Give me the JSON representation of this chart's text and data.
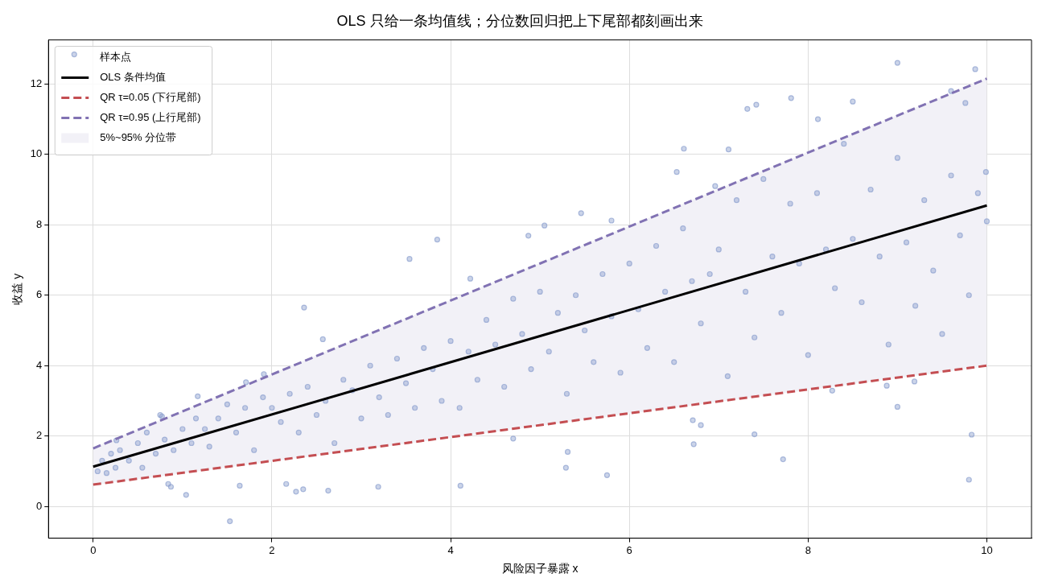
{
  "chart_data": {
    "type": "scatter",
    "title": "OLS 只给一条均值线；分位数回归把上下尾部都刻画出来",
    "xlabel": "风险因子暴露 x",
    "ylabel": "收益 y",
    "xlim": [
      -0.5,
      10.5
    ],
    "xticks": [
      0,
      2,
      4,
      6,
      8,
      10
    ],
    "ylim": [
      -0.9,
      13.25
    ],
    "yticks": [
      0,
      2,
      4,
      6,
      8,
      10,
      12
    ],
    "grid": true,
    "legend": "top left",
    "series": [
      {
        "name": "样本点",
        "color": "#8c9fcf",
        "marker": "circle",
        "x": [
          0.05,
          0.1,
          0.15,
          0.2,
          0.25,
          0.3,
          0.4,
          0.5,
          0.55,
          0.6,
          0.7,
          0.75,
          0.8,
          0.9,
          1.0,
          1.1,
          1.15,
          1.25,
          1.3,
          1.4,
          1.5,
          1.6,
          1.7,
          1.8,
          1.9,
          2.0,
          2.1,
          2.2,
          2.3,
          2.4,
          2.5,
          2.6,
          2.7,
          2.8,
          2.9,
          3.0,
          3.1,
          3.2,
          3.3,
          3.4,
          3.5,
          3.6,
          3.7,
          3.8,
          3.9,
          4.0,
          4.1,
          4.2,
          4.3,
          4.4,
          4.5,
          4.6,
          4.7,
          4.8,
          4.9,
          5.0,
          5.1,
          5.2,
          5.3,
          5.4,
          5.5,
          5.6,
          5.7,
          5.8,
          5.9,
          6.0,
          6.1,
          6.2,
          6.3,
          6.4,
          6.5,
          6.6,
          6.7,
          6.8,
          6.9,
          7.0,
          7.1,
          7.2,
          7.3,
          7.4,
          7.5,
          7.6,
          7.7,
          7.8,
          7.9,
          8.0,
          8.1,
          8.2,
          8.3,
          8.4,
          8.5,
          8.6,
          8.7,
          8.8,
          8.9,
          9.0,
          9.1,
          9.2,
          9.3,
          9.4,
          9.5,
          9.6,
          9.7,
          9.8,
          9.9,
          10.0,
          0.84,
          0.87,
          1.04,
          1.53,
          1.64,
          2.16,
          2.27,
          2.35,
          2.63,
          3.19,
          2.36,
          2.57,
          1.17,
          0.77,
          1.91,
          1.71,
          0.26,
          3.54,
          3.85,
          4.22,
          4.11,
          4.7,
          5.31,
          5.29,
          5.75,
          6.72,
          6.71,
          6.8,
          6.61,
          6.53,
          5.46,
          5.8,
          5.05,
          4.87,
          6.96,
          9.0,
          9.87,
          9.6,
          8.5,
          7.81,
          7.42,
          7.32,
          8.11,
          7.11,
          7.4,
          7.72,
          9.83,
          9.8,
          9.0,
          8.27,
          8.88,
          9.19,
          9.99,
          9.76
        ],
        "values": [
          1.0,
          1.3,
          0.95,
          1.5,
          1.1,
          1.6,
          1.3,
          1.8,
          1.1,
          2.1,
          1.5,
          2.6,
          1.9,
          1.6,
          2.2,
          1.8,
          2.5,
          2.2,
          1.7,
          2.5,
          2.9,
          2.1,
          2.8,
          1.6,
          3.1,
          2.8,
          2.4,
          3.2,
          2.1,
          3.4,
          2.6,
          3.0,
          1.8,
          3.6,
          3.3,
          2.5,
          4.0,
          3.1,
          2.6,
          4.2,
          3.5,
          2.8,
          4.5,
          3.9,
          3.0,
          4.7,
          2.8,
          4.4,
          3.6,
          5.3,
          4.6,
          3.4,
          5.9,
          4.9,
          3.9,
          6.1,
          4.4,
          5.5,
          3.2,
          6.0,
          5.0,
          4.1,
          6.6,
          5.4,
          3.8,
          6.9,
          5.6,
          4.5,
          7.4,
          6.1,
          4.1,
          7.9,
          6.4,
          5.2,
          6.6,
          7.3,
          3.7,
          8.7,
          6.1,
          4.8,
          9.3,
          7.1,
          5.5,
          8.6,
          6.9,
          4.3,
          8.9,
          7.3,
          6.2,
          10.3,
          7.6,
          5.8,
          9.0,
          7.1,
          4.6,
          9.9,
          7.5,
          5.7,
          8.7,
          6.7,
          4.9,
          9.4,
          7.7,
          6.0,
          8.9,
          8.1,
          0.64,
          0.56,
          0.33,
          -0.42,
          0.59,
          0.64,
          0.42,
          0.49,
          0.45,
          0.56,
          5.65,
          4.75,
          3.13,
          2.56,
          3.76,
          3.53,
          1.88,
          7.03,
          7.58,
          6.47,
          0.59,
          1.93,
          1.55,
          1.1,
          0.89,
          1.77,
          2.45,
          2.31,
          10.16,
          9.5,
          8.33,
          8.12,
          7.98,
          7.69,
          9.1,
          12.6,
          12.42,
          11.8,
          11.5,
          11.6,
          11.41,
          11.29,
          11.0,
          10.14,
          2.05,
          1.34,
          2.04,
          0.76,
          2.83,
          3.29,
          3.43,
          3.55,
          9.5,
          11.46
        ]
      },
      {
        "type": "line",
        "name": "OLS 条件均值",
        "color": "#000000",
        "line_style": "solid",
        "marker": "none",
        "x": [
          0,
          10
        ],
        "values": [
          1.13,
          8.55
        ]
      },
      {
        "type": "line",
        "name": "QR τ=0.05 (下行尾部)",
        "color": "#c44e52",
        "line_style": "dashed",
        "marker": "none",
        "x": [
          0,
          10
        ],
        "values": [
          0.62,
          4.0
        ]
      },
      {
        "type": "line",
        "name": "QR τ=0.95 (上行尾部)",
        "color": "#8172b3",
        "line_style": "dashed",
        "marker": "none",
        "x": [
          0,
          10
        ],
        "values": [
          1.65,
          12.15
        ]
      },
      {
        "type": "area",
        "name": "5%~95% 分位带",
        "color": "#f2f1f7",
        "x": [
          0,
          10
        ],
        "values": [
          null,
          null
        ],
        "lower": [
          0.62,
          4.0
        ],
        "upper": [
          1.65,
          12.15
        ]
      }
    ]
  }
}
